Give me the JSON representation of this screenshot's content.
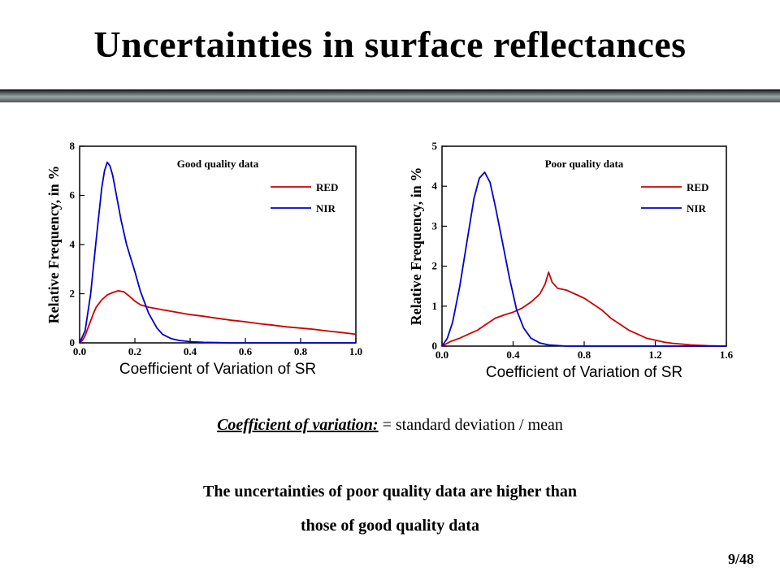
{
  "slide": {
    "title": "Uncertainties in surface reflectances",
    "caption_term": "Coefficient of variation:",
    "caption_rest": " = standard deviation / mean",
    "conclusion_line1": "The uncertainties of poor quality data are higher than",
    "conclusion_line2": "those of good quality data",
    "page_number": "9/48"
  },
  "colors": {
    "red": "#cc0000",
    "nir": "#0000cc",
    "rule_dark": "#3f4a4a",
    "rule_mid": "#8e9a98",
    "rule_light": "#c9d2cf"
  },
  "chart_data": [
    {
      "type": "line",
      "title": "Good quality data",
      "xlabel": "Coefficient of Variation of SR",
      "ylabel": "Relative Frequency, in %",
      "xlim": [
        0.0,
        1.0
      ],
      "ylim": [
        0,
        8
      ],
      "xticks": [
        0.0,
        0.2,
        0.4,
        0.6,
        0.8,
        1.0
      ],
      "xtick_labels": [
        "0.0",
        "0.2",
        "0.4",
        "0.6",
        "0.8",
        "1.0"
      ],
      "yticks": [
        0,
        2,
        4,
        6,
        8
      ],
      "ytick_labels": [
        "0",
        "2",
        "4",
        "6",
        "8"
      ],
      "grid": false,
      "legend_position": "top-right",
      "series": [
        {
          "name": "RED",
          "color": "#cc0000",
          "x": [
            0.0,
            0.01,
            0.02,
            0.03,
            0.04,
            0.05,
            0.06,
            0.08,
            0.1,
            0.12,
            0.14,
            0.16,
            0.18,
            0.2,
            0.22,
            0.25,
            0.3,
            0.35,
            0.4,
            0.45,
            0.5,
            0.55,
            0.6,
            0.65,
            0.7,
            0.75,
            0.8,
            0.85,
            0.9,
            0.95,
            1.0
          ],
          "y": [
            0.0,
            0.1,
            0.3,
            0.6,
            0.9,
            1.2,
            1.45,
            1.75,
            1.95,
            2.05,
            2.12,
            2.08,
            1.9,
            1.7,
            1.55,
            1.45,
            1.35,
            1.25,
            1.15,
            1.08,
            1.0,
            0.92,
            0.86,
            0.78,
            0.72,
            0.65,
            0.6,
            0.55,
            0.48,
            0.42,
            0.35
          ]
        },
        {
          "name": "NIR",
          "color": "#0000cc",
          "x": [
            0.0,
            0.02,
            0.04,
            0.06,
            0.08,
            0.09,
            0.1,
            0.11,
            0.12,
            0.13,
            0.15,
            0.17,
            0.2,
            0.22,
            0.25,
            0.28,
            0.3,
            0.33,
            0.36,
            0.4,
            0.45,
            0.5,
            0.55,
            0.6,
            1.0
          ],
          "y": [
            0.0,
            0.5,
            2.0,
            4.2,
            6.3,
            7.0,
            7.35,
            7.2,
            6.8,
            6.2,
            5.0,
            4.0,
            2.9,
            2.1,
            1.2,
            0.6,
            0.35,
            0.18,
            0.1,
            0.05,
            0.02,
            0.01,
            0.0,
            0.0,
            0.0
          ]
        }
      ]
    },
    {
      "type": "line",
      "title": "Poor quality data",
      "xlabel": "Coefficient of Variation of SR",
      "ylabel": "Relative Frequency, in %",
      "xlim": [
        0.0,
        1.6
      ],
      "ylim": [
        0,
        5
      ],
      "xticks": [
        0.0,
        0.4,
        0.8,
        1.2,
        1.6
      ],
      "xtick_labels": [
        "0.0",
        "0.4",
        "0.8",
        "1.2",
        "1.6"
      ],
      "yticks": [
        0,
        1,
        2,
        3,
        4,
        5
      ],
      "ytick_labels": [
        "0",
        "1",
        "2",
        "3",
        "4",
        "5"
      ],
      "grid": false,
      "legend_position": "top-right",
      "series": [
        {
          "name": "RED",
          "color": "#cc0000",
          "x": [
            0.0,
            0.05,
            0.1,
            0.15,
            0.2,
            0.25,
            0.3,
            0.35,
            0.4,
            0.45,
            0.5,
            0.55,
            0.58,
            0.6,
            0.62,
            0.65,
            0.7,
            0.75,
            0.8,
            0.85,
            0.9,
            0.95,
            1.0,
            1.05,
            1.1,
            1.15,
            1.2,
            1.25,
            1.3,
            1.35,
            1.4,
            1.45,
            1.5,
            1.6
          ],
          "y": [
            0.0,
            0.12,
            0.2,
            0.3,
            0.4,
            0.55,
            0.7,
            0.78,
            0.85,
            0.95,
            1.1,
            1.3,
            1.55,
            1.85,
            1.6,
            1.45,
            1.4,
            1.3,
            1.2,
            1.05,
            0.9,
            0.7,
            0.55,
            0.4,
            0.3,
            0.2,
            0.15,
            0.1,
            0.07,
            0.05,
            0.03,
            0.02,
            0.01,
            0.0
          ]
        },
        {
          "name": "NIR",
          "color": "#0000cc",
          "x": [
            0.0,
            0.03,
            0.06,
            0.1,
            0.14,
            0.18,
            0.21,
            0.24,
            0.27,
            0.3,
            0.34,
            0.38,
            0.42,
            0.46,
            0.5,
            0.55,
            0.6,
            0.7,
            0.8,
            1.6
          ],
          "y": [
            0.0,
            0.2,
            0.6,
            1.5,
            2.6,
            3.7,
            4.2,
            4.35,
            4.1,
            3.5,
            2.6,
            1.7,
            0.9,
            0.45,
            0.2,
            0.08,
            0.03,
            0.0,
            0.0,
            0.0
          ]
        }
      ]
    }
  ]
}
